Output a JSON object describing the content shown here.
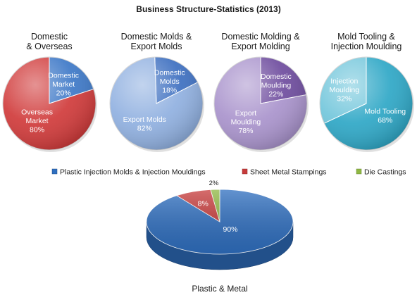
{
  "title": "Business Structure-Statistics (2013)",
  "chart_data": [
    {
      "type": "pie",
      "title": "Domestic & Overseas",
      "title_lines": [
        "Domestic",
        "& Overseas"
      ],
      "slices": [
        {
          "label_lines": [
            "Domestic",
            "Market",
            "20%"
          ],
          "value": 20,
          "color": "#3d78c7"
        },
        {
          "label_lines": [
            "Overseas",
            "Market",
            "80%"
          ],
          "value": 80,
          "color": "#d03a3a"
        }
      ]
    },
    {
      "type": "pie",
      "title": "Domestic Molds & Export Molds",
      "title_lines": [
        "Domestic Molds &",
        "Export Molds"
      ],
      "slices": [
        {
          "label_lines": [
            "Domestic",
            "Molds",
            "18%"
          ],
          "value": 18,
          "color": "#3d6fc0"
        },
        {
          "label_lines": [
            "Export Molds",
            "82%"
          ],
          "value": 82,
          "color": "#90b0e0"
        }
      ]
    },
    {
      "type": "pie",
      "title": "Domestic Molding & Export Molding",
      "title_lines": [
        "Domestic Molding &",
        "Export Molding"
      ],
      "slices": [
        {
          "label_lines": [
            "Domestic",
            "Moulding",
            "22%"
          ],
          "value": 22,
          "color": "#6e4c9e"
        },
        {
          "label_lines": [
            "Export",
            "Moulding",
            "78%"
          ],
          "value": 78,
          "color": "#a993cc"
        }
      ]
    },
    {
      "type": "pie",
      "title": "Mold Tooling & Injection Moulding",
      "title_lines": [
        "Mold Tooling &",
        "Injection Moulding"
      ],
      "slices": [
        {
          "label_lines": [
            "Mold Tooling",
            "68%"
          ],
          "value": 68,
          "color": "#2ea7c6"
        },
        {
          "label_lines": [
            "Injection",
            "Moulding",
            "32%"
          ],
          "value": 32,
          "color": "#72c6db"
        }
      ]
    },
    {
      "type": "pie",
      "title": "Plastic & Metal",
      "legend_position": "top",
      "slices": [
        {
          "name": "Plastic Injection Molds & Injection Mouldings",
          "label": "90%",
          "value": 90,
          "color": "#2f6fc0"
        },
        {
          "name": "Sheet Metal Stampings",
          "label": "8%",
          "value": 8,
          "color": "#c73b3b"
        },
        {
          "name": "Die Castings",
          "label": "2%",
          "value": 2,
          "color": "#8fb843"
        }
      ]
    }
  ]
}
